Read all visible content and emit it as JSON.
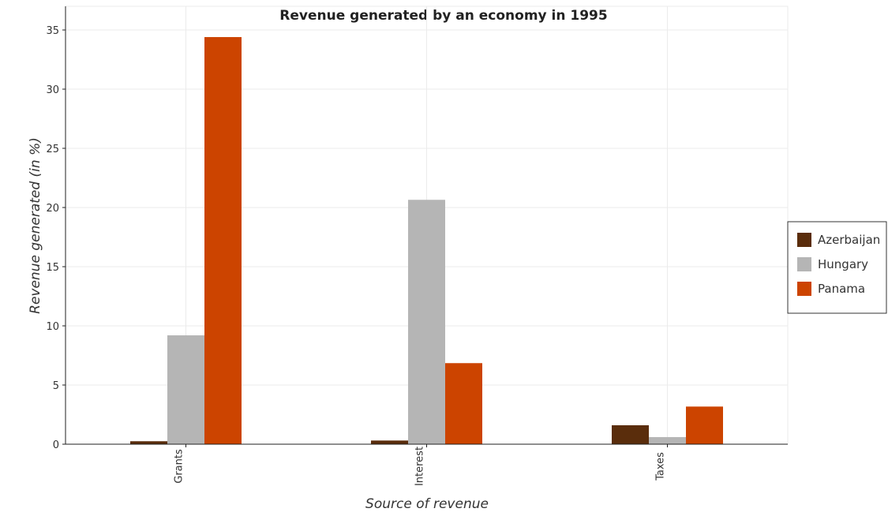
{
  "chart_data": {
    "type": "bar",
    "title": "Revenue generated by an economy in 1995",
    "xlabel": "Source of revenue",
    "ylabel": "Revenue generated (in %)",
    "categories": [
      "Grants",
      "Interest",
      "Taxes"
    ],
    "series": [
      {
        "name": "Azerbaijan",
        "color": "#5a2d0c",
        "values": [
          0.25,
          0.31,
          1.6
        ]
      },
      {
        "name": "Hungary",
        "color": "#b5b5b5",
        "values": [
          9.2,
          20.65,
          0.6
        ]
      },
      {
        "name": "Panama",
        "color": "#cc4400",
        "values": [
          34.4,
          6.85,
          3.18
        ]
      }
    ],
    "ylim": [
      0,
      37
    ],
    "yticks": [
      0,
      5,
      10,
      15,
      20,
      25,
      30,
      35
    ],
    "grid": true,
    "legend_position": "right"
  }
}
